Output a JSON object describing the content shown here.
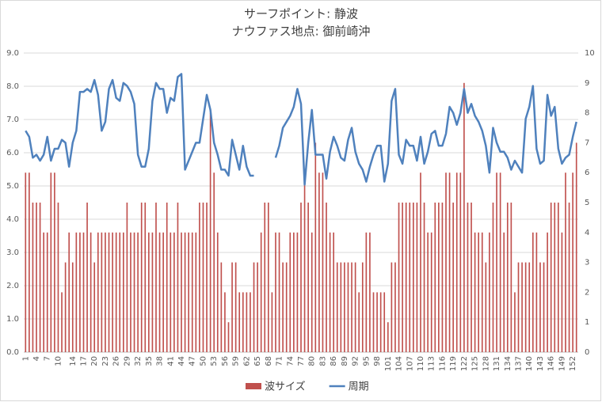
{
  "chart_data": {
    "type": "bar-line",
    "title": "サーフポイント: 静波",
    "subtitle": "ナウファス地点: 御前崎沖",
    "categories": [
      "1",
      null,
      null,
      "4",
      null,
      null,
      "7",
      null,
      null,
      "10",
      null,
      null,
      null,
      "14",
      null,
      null,
      "17",
      null,
      null,
      "20",
      null,
      null,
      "23",
      null,
      null,
      "26",
      null,
      null,
      "29",
      null,
      null,
      "32",
      null,
      null,
      "35",
      null,
      null,
      "38",
      null,
      null,
      "41",
      null,
      null,
      "44",
      null,
      null,
      "47",
      null,
      null,
      "50",
      null,
      null,
      "53",
      null,
      null,
      "56",
      null,
      null,
      "59",
      null,
      null,
      "62",
      null,
      null,
      "65",
      null,
      null,
      "68",
      null,
      null,
      "71",
      null,
      null,
      "74",
      null,
      null,
      "77",
      null,
      null,
      "80",
      null,
      null,
      "83",
      null,
      null,
      "86",
      null,
      null,
      "89",
      null,
      null,
      "92",
      null,
      null,
      "95",
      null,
      null,
      "98",
      null,
      null,
      "101",
      null,
      null,
      "104",
      null,
      null,
      "107",
      null,
      null,
      "110",
      null,
      null,
      "113",
      null,
      null,
      "116",
      null,
      null,
      "119",
      null,
      null,
      "122",
      null,
      null,
      "125",
      null,
      null,
      "128",
      null,
      null,
      "131",
      null,
      null,
      "134",
      null,
      null,
      "137",
      null,
      null,
      "140",
      null,
      null,
      "143",
      null,
      null,
      "146",
      null,
      null,
      "149",
      null,
      null,
      "152",
      null
    ],
    "series": [
      {
        "name": "波サイズ",
        "color": "#c0504d",
        "kind": "bar",
        "values": [
          5.4,
          5.4,
          4.5,
          4.5,
          4.5,
          3.6,
          3.6,
          5.4,
          5.4,
          4.5,
          1.8,
          2.7,
          3.6,
          2.7,
          3.6,
          3.6,
          3.6,
          4.5,
          3.6,
          2.7,
          3.6,
          3.6,
          3.6,
          3.6,
          3.6,
          3.6,
          3.6,
          3.6,
          4.5,
          3.6,
          3.6,
          3.6,
          4.5,
          4.5,
          3.6,
          3.6,
          4.5,
          3.6,
          3.6,
          4.5,
          3.6,
          3.6,
          4.5,
          3.6,
          3.6,
          3.6,
          3.6,
          3.6,
          4.5,
          4.5,
          4.5,
          7.2,
          5.4,
          3.6,
          2.7,
          1.8,
          0.9,
          2.7,
          2.7,
          1.8,
          1.8,
          1.8,
          1.8,
          2.7,
          2.7,
          3.6,
          4.5,
          4.5,
          1.8,
          3.6,
          3.6,
          2.7,
          2.7,
          3.6,
          3.6,
          3.6,
          4.5,
          5.4,
          4.5,
          3.6,
          6.3,
          5.4,
          5.4,
          4.5,
          3.6,
          3.6,
          2.7,
          2.7,
          2.7,
          2.7,
          2.7,
          2.7,
          1.8,
          2.7,
          3.6,
          3.6,
          1.8,
          1.8,
          1.8,
          1.8,
          0.9,
          2.7,
          2.7,
          4.5,
          4.5,
          4.5,
          4.5,
          4.5,
          4.5,
          5.4,
          4.5,
          3.6,
          3.6,
          4.5,
          4.5,
          4.5,
          5.4,
          5.4,
          4.5,
          5.4,
          5.4,
          8.1,
          4.5,
          4.5,
          3.6,
          3.6,
          3.6,
          2.7,
          3.6,
          4.5,
          5.4,
          5.4,
          3.6,
          4.5,
          4.5,
          1.8,
          2.7,
          2.7,
          2.7,
          2.7,
          3.6,
          3.6,
          2.7,
          2.7,
          3.6,
          4.5,
          4.5,
          4.5,
          3.6,
          5.4,
          4.5,
          5.4,
          6.3
        ]
      },
      {
        "name": "周期",
        "color": "#4f81bd",
        "kind": "line",
        "axis": "y2",
        "values": [
          7.4,
          7.2,
          6.5,
          6.6,
          6.4,
          6.6,
          7.2,
          6.4,
          6.8,
          6.8,
          7.1,
          7.0,
          6.2,
          7.0,
          7.4,
          8.7,
          8.7,
          8.8,
          8.7,
          9.1,
          8.6,
          7.4,
          7.7,
          8.8,
          9.1,
          8.5,
          8.4,
          9.0,
          8.9,
          8.7,
          8.3,
          6.6,
          6.2,
          6.2,
          6.8,
          8.4,
          9.0,
          8.8,
          8.8,
          8.0,
          8.5,
          8.4,
          9.2,
          9.3,
          6.1,
          6.4,
          6.7,
          7.0,
          7.0,
          7.8,
          8.6,
          8.1,
          7.0,
          6.6,
          6.1,
          6.1,
          5.9,
          7.1,
          6.6,
          6.1,
          6.9,
          6.2,
          5.9,
          5.9,
          null,
          null,
          null,
          null,
          null,
          6.5,
          6.9,
          7.5,
          7.7,
          7.9,
          8.2,
          8.8,
          8.3,
          5.6,
          7.0,
          8.1,
          6.6,
          6.6,
          6.6,
          5.8,
          6.7,
          7.2,
          6.9,
          6.5,
          6.4,
          7.1,
          7.5,
          6.7,
          6.3,
          6.1,
          5.7,
          6.2,
          6.6,
          6.9,
          6.9,
          5.7,
          6.3,
          8.4,
          8.8,
          6.6,
          6.3,
          7.1,
          6.9,
          6.9,
          6.4,
          7.2,
          6.3,
          6.7,
          7.3,
          7.4,
          6.9,
          6.9,
          7.3,
          8.2,
          8.0,
          7.6,
          8.0,
          8.8,
          8.0,
          8.3,
          7.9,
          7.7,
          7.4,
          6.9,
          6.0,
          7.5,
          7.0,
          6.7,
          6.7,
          6.5,
          6.1,
          6.4,
          6.2,
          6.0,
          7.8,
          8.2,
          8.9,
          6.8,
          6.3,
          6.4,
          8.6,
          7.9,
          8.2,
          6.8,
          6.3,
          6.5,
          6.6,
          7.2,
          7.7
        ]
      }
    ],
    "ylim": [
      0,
      9
    ],
    "yticks": [
      {
        "value": 0,
        "label": "0.0"
      },
      {
        "value": 1,
        "label": "1.0"
      },
      {
        "value": 2,
        "label": "2.0"
      },
      {
        "value": 3,
        "label": "3.0"
      },
      {
        "value": 4,
        "label": "4.0"
      },
      {
        "value": 5,
        "label": "5.0"
      },
      {
        "value": 6,
        "label": "6.0"
      },
      {
        "value": 7,
        "label": "7.0"
      },
      {
        "value": 8,
        "label": "8.0"
      },
      {
        "value": 9,
        "label": "9.0"
      }
    ],
    "y2lim": [
      0,
      10
    ],
    "y2ticks": [
      0,
      1,
      2,
      3,
      4,
      5,
      6,
      7,
      8,
      9,
      10
    ],
    "grid": true,
    "legend": "bottom"
  }
}
